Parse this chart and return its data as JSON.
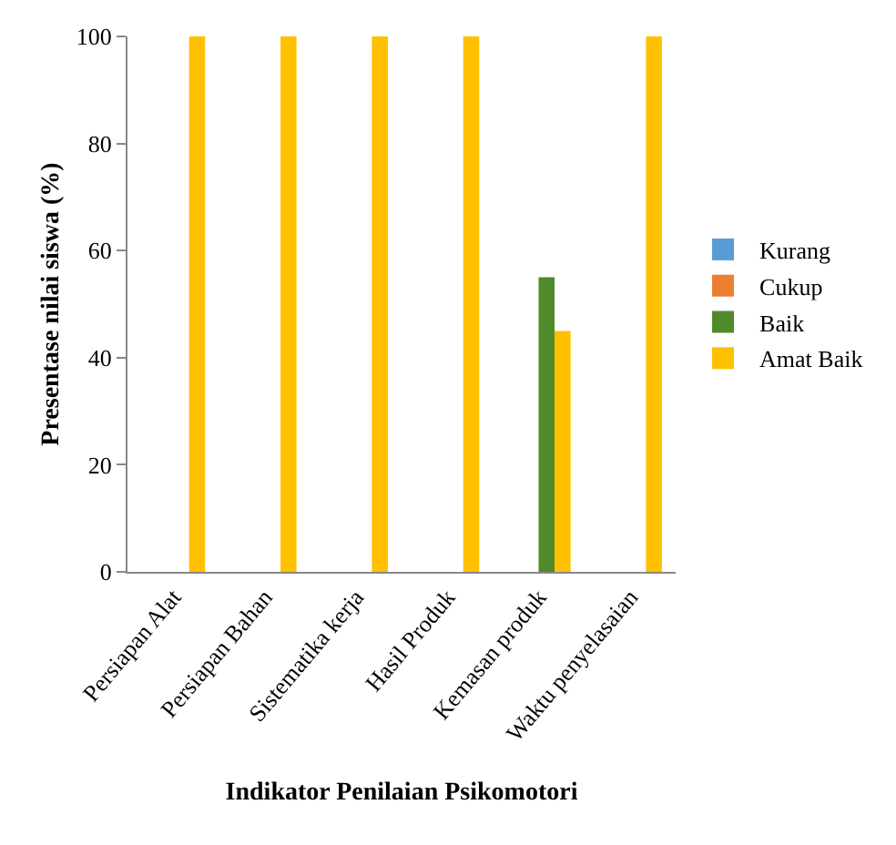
{
  "chart_data": {
    "type": "bar",
    "xlabel": "Indikator Penilaian Psikomotori",
    "ylabel": "Presentase nilai siswa (%)",
    "categories": [
      "Persiapan Alat",
      "Persiapan Bahan",
      "Sistematika kerja",
      "Hasil Produk",
      "Kemasan produk",
      "Waktu penyelasaian"
    ],
    "series": [
      {
        "name": "Kurang",
        "color": "#5b9bd5",
        "values": [
          0,
          0,
          0,
          0,
          0,
          0
        ]
      },
      {
        "name": "Cukup",
        "color": "#ed7d31",
        "values": [
          0,
          0,
          0,
          0,
          0,
          0
        ]
      },
      {
        "name": "Baik",
        "color": "#4f8a2b",
        "values": [
          0,
          0,
          0,
          0,
          55,
          0
        ]
      },
      {
        "name": "Amat Baik",
        "color": "#ffc000",
        "values": [
          100,
          100,
          100,
          100,
          45,
          100
        ]
      }
    ],
    "ylim": [
      0,
      100
    ],
    "yticks": [
      0,
      20,
      40,
      60,
      80,
      100
    ],
    "grid": false,
    "legend": "right"
  }
}
